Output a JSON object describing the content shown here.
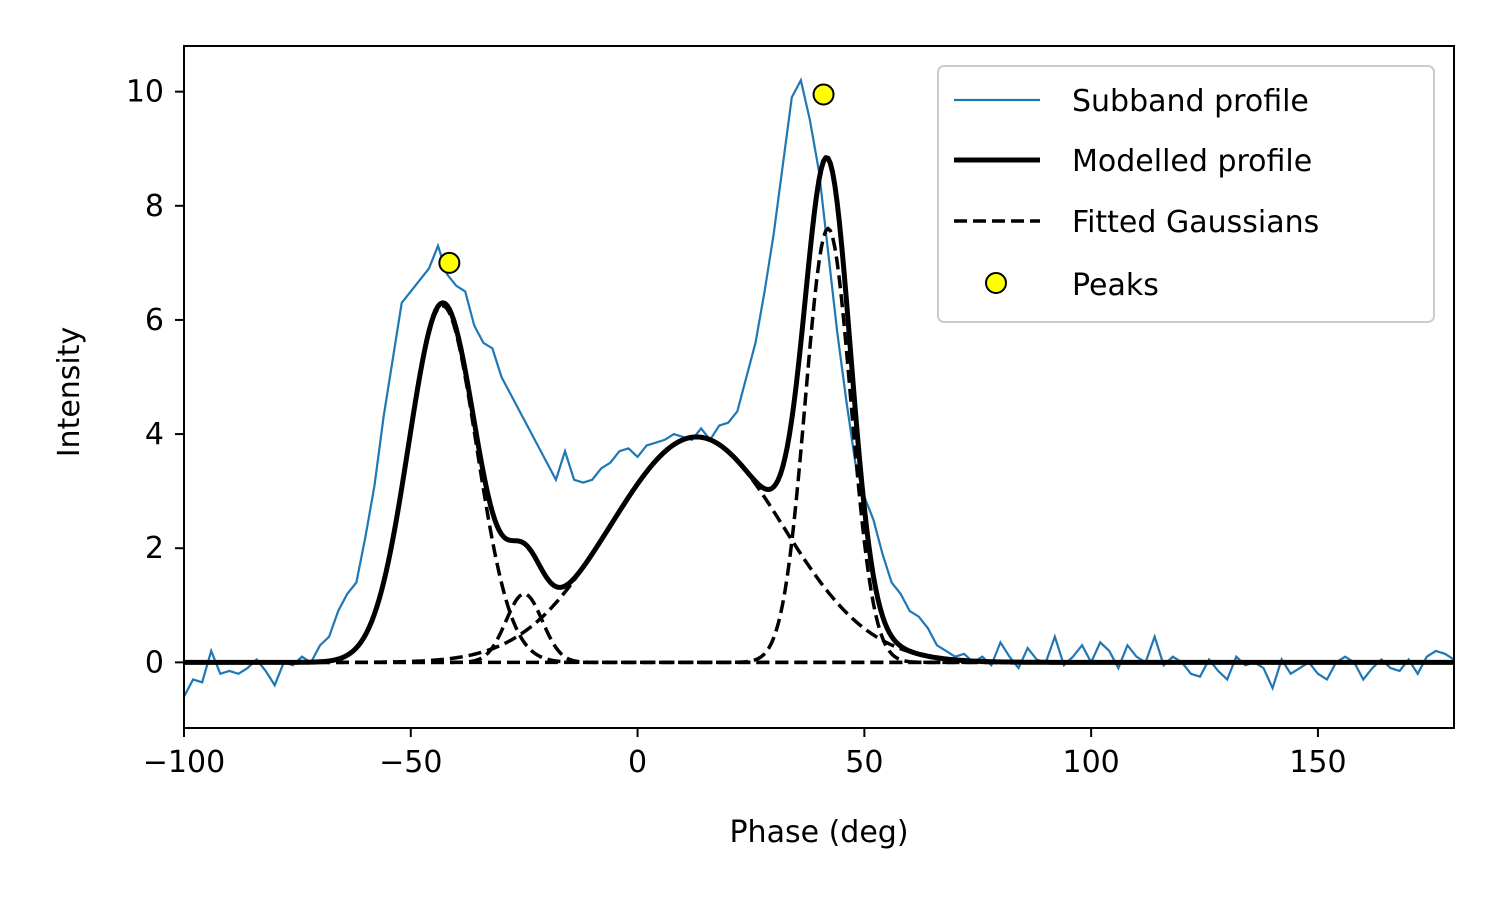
{
  "chart_data": {
    "type": "line",
    "title": "",
    "xlabel": "Phase (deg)",
    "ylabel": "Intensity",
    "xlim": [
      -100,
      180
    ],
    "ylim": [
      -1.15,
      10.8
    ],
    "xticks": [
      -100,
      -50,
      0,
      50,
      100,
      150
    ],
    "xtick_labels": [
      "−100",
      "−50",
      "0",
      "50",
      "100",
      "150"
    ],
    "yticks": [
      0,
      2,
      4,
      6,
      8,
      10
    ],
    "ytick_labels": [
      "0",
      "2",
      "4",
      "6",
      "8",
      "10"
    ],
    "grid": false,
    "legend_position": "top-right",
    "gaussians": [
      {
        "amplitude": 6.25,
        "center": -43,
        "sigma": 7.5
      },
      {
        "amplitude": 1.2,
        "center": -25,
        "sigma": 4
      },
      {
        "amplitude": 3.95,
        "center": 13,
        "sigma": 19
      },
      {
        "amplitude": 7.6,
        "center": 42,
        "sigma": 5
      }
    ],
    "series": [
      {
        "name": "Subband profile",
        "style": "thin-line",
        "color": "#1f77b4",
        "x": [
          -100,
          -98,
          -96,
          -94,
          -92,
          -90,
          -88,
          -86,
          -84,
          -82,
          -80,
          -78,
          -76,
          -74,
          -72,
          -70,
          -68,
          -66,
          -64,
          -62,
          -60,
          -58,
          -56,
          -54,
          -52,
          -50,
          -48,
          -46,
          -44,
          -42,
          -40,
          -38,
          -36,
          -34,
          -32,
          -30,
          -28,
          -26,
          -24,
          -22,
          -20,
          -18,
          -16,
          -14,
          -12,
          -10,
          -8,
          -6,
          -4,
          -2,
          0,
          2,
          4,
          6,
          8,
          10,
          12,
          14,
          16,
          18,
          20,
          22,
          24,
          26,
          28,
          30,
          32,
          34,
          36,
          38,
          40,
          42,
          44,
          46,
          48,
          50,
          52,
          54,
          56,
          58,
          60,
          62,
          64,
          66,
          68,
          70,
          72,
          74,
          76,
          78,
          80,
          82,
          84,
          86,
          88,
          90,
          92,
          94,
          96,
          98,
          100,
          102,
          104,
          106,
          108,
          110,
          112,
          114,
          116,
          118,
          120,
          122,
          124,
          126,
          128,
          130,
          132,
          134,
          136,
          138,
          140,
          142,
          144,
          146,
          148,
          150,
          152,
          154,
          156,
          158,
          160,
          162,
          164,
          166,
          168,
          170,
          172,
          174,
          176,
          178,
          180
        ],
        "values": [
          -0.6,
          -0.3,
          -0.35,
          0.2,
          -0.2,
          -0.15,
          -0.2,
          -0.1,
          0.05,
          -0.15,
          -0.4,
          0.0,
          -0.05,
          0.1,
          0.0,
          0.3,
          0.45,
          0.9,
          1.2,
          1.4,
          2.2,
          3.1,
          4.3,
          5.3,
          6.3,
          6.5,
          6.7,
          6.9,
          7.3,
          6.8,
          6.6,
          6.5,
          5.9,
          5.6,
          5.5,
          5.0,
          4.7,
          4.4,
          4.1,
          3.8,
          3.5,
          3.2,
          3.7,
          3.2,
          3.15,
          3.2,
          3.4,
          3.5,
          3.7,
          3.75,
          3.6,
          3.8,
          3.85,
          3.9,
          4.0,
          3.95,
          3.9,
          4.1,
          3.9,
          4.15,
          4.2,
          4.4,
          5.0,
          5.6,
          6.5,
          7.5,
          8.7,
          9.9,
          10.2,
          9.5,
          8.6,
          7.2,
          5.8,
          4.6,
          3.5,
          2.9,
          2.5,
          1.9,
          1.4,
          1.2,
          0.9,
          0.8,
          0.6,
          0.3,
          0.2,
          0.1,
          0.15,
          0.0,
          0.1,
          -0.05,
          0.35,
          0.1,
          -0.1,
          0.25,
          0.05,
          0.0,
          0.45,
          -0.05,
          0.1,
          0.3,
          0.0,
          0.35,
          0.2,
          -0.1,
          0.3,
          0.1,
          0.0,
          0.45,
          -0.05,
          0.1,
          0.0,
          -0.2,
          -0.25,
          0.05,
          -0.15,
          -0.3,
          0.1,
          -0.05,
          0.0,
          -0.1,
          -0.45,
          0.05,
          -0.2,
          -0.1,
          0.0,
          -0.2,
          -0.3,
          0.0,
          0.1,
          0.0,
          -0.3,
          -0.1,
          0.05,
          -0.1,
          -0.15,
          0.05,
          -0.2,
          0.1,
          0.2,
          0.15,
          0.05
        ]
      },
      {
        "name": "Modelled profile",
        "style": "thick-line",
        "color": "#000000"
      },
      {
        "name": "Fitted Gaussians",
        "style": "dashed-line",
        "color": "#000000"
      },
      {
        "name": "Peaks",
        "style": "marker",
        "color": "#ffff00",
        "points": [
          {
            "x": -41.5,
            "y": 7.0
          },
          {
            "x": 41.0,
            "y": 9.95
          }
        ]
      }
    ],
    "legend": [
      "Subband profile",
      "Modelled profile",
      "Fitted Gaussians",
      "Peaks"
    ]
  }
}
